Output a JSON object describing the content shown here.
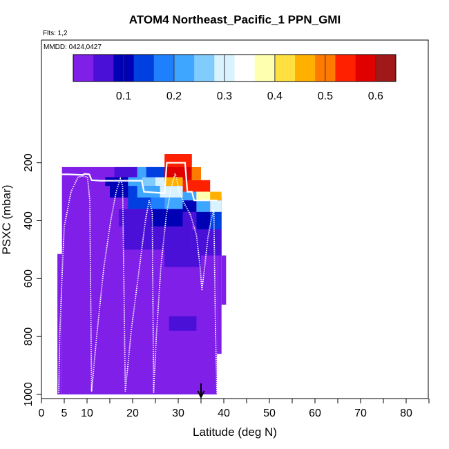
{
  "chart_data": {
    "type": "heatmap",
    "title": "ATOM4 Northeast_Pacific_1 PPN_GMI",
    "flights_note": "Flts: 1,2",
    "date_note": "MMDD: 0424,0427",
    "xlabel": "Latitude (deg N)",
    "ylabel": "PSXC (mbar)",
    "xlim": [
      0,
      85
    ],
    "ylim": [
      1030,
      50
    ],
    "y_reversed": true,
    "grid": false,
    "x_ticks": [
      0,
      5,
      10,
      20,
      30,
      40,
      50,
      60,
      70,
      80
    ],
    "x_minor_ticks": [
      15,
      25,
      35,
      45,
      55,
      65,
      75,
      85
    ],
    "y_ticks": [
      200,
      400,
      600,
      800,
      1000
    ],
    "colorbar": {
      "range": [
        0,
        0.64
      ],
      "ticks": [
        0.1,
        0.2,
        0.3,
        0.4,
        0.5,
        0.6
      ],
      "colors": [
        "#7f1fe8",
        "#4b10d8",
        "#0000b4",
        "#0040e0",
        "#1e7fff",
        "#3ea6ff",
        "#80ccff",
        "#d8f2ff",
        "#ffffff",
        "#ffffb0",
        "#ffe040",
        "#ffb000",
        "#ff7a00",
        "#ff2000",
        "#e00000",
        "#a01818"
      ]
    },
    "column_extents": [
      {
        "x": [
          3.5,
          4.5
        ],
        "p": [
          515,
          1000
        ]
      },
      {
        "x": [
          4.5,
          27.5
        ],
        "p": [
          215,
          1000
        ]
      },
      {
        "x": [
          27.5,
          32.5
        ],
        "p": [
          170,
          1000
        ]
      },
      {
        "x": [
          32.5,
          37.5
        ],
        "p": [
          330,
          1000
        ]
      },
      {
        "x": [
          37.5,
          38.5
        ],
        "p": [
          330,
          1000
        ]
      },
      {
        "x": [
          38.5,
          39.5
        ],
        "p": [
          320,
          860
        ]
      },
      {
        "x": [
          39.5,
          40.5
        ],
        "p": [
          520,
          690
        ]
      }
    ],
    "cells": [
      {
        "x": [
          16,
          21
        ],
        "p": [
          215,
          250
        ],
        "v": 0.06
      },
      {
        "x": [
          21,
          23
        ],
        "p": [
          215,
          250
        ],
        "v": 0.2
      },
      {
        "x": [
          23,
          27
        ],
        "p": [
          215,
          250
        ],
        "v": 0.15
      },
      {
        "x": [
          27,
          33
        ],
        "p": [
          170,
          215
        ],
        "v": 0.55
      },
      {
        "x": [
          27,
          33
        ],
        "p": [
          215,
          260
        ],
        "v": 0.58
      },
      {
        "x": [
          33,
          35
        ],
        "p": [
          215,
          260
        ],
        "v": 0.5
      },
      {
        "x": [
          14,
          19
        ],
        "p": [
          250,
          280
        ],
        "v": 0.08
      },
      {
        "x": [
          19,
          22
        ],
        "p": [
          250,
          280
        ],
        "v": 0.2
      },
      {
        "x": [
          22,
          25
        ],
        "p": [
          250,
          280
        ],
        "v": 0.24
      },
      {
        "x": [
          25,
          27
        ],
        "p": [
          250,
          280
        ],
        "v": 0.29
      },
      {
        "x": [
          27,
          31
        ],
        "p": [
          250,
          280
        ],
        "v": 0.45
      },
      {
        "x": [
          31,
          37
        ],
        "p": [
          260,
          300
        ],
        "v": 0.55
      },
      {
        "x": [
          15,
          19
        ],
        "p": [
          280,
          320
        ],
        "v": 0.08
      },
      {
        "x": [
          19,
          21
        ],
        "p": [
          280,
          320
        ],
        "v": 0.15
      },
      {
        "x": [
          21,
          26
        ],
        "p": [
          280,
          320
        ],
        "v": 0.22
      },
      {
        "x": [
          26,
          31
        ],
        "p": [
          280,
          320
        ],
        "v": 0.28
      },
      {
        "x": [
          31,
          34
        ],
        "p": [
          300,
          330
        ],
        "v": 0.2
      },
      {
        "x": [
          34,
          37
        ],
        "p": [
          300,
          330
        ],
        "v": 0.36
      },
      {
        "x": [
          37,
          39.5
        ],
        "p": [
          300,
          330
        ],
        "v": 0.45
      },
      {
        "x": [
          19,
          24
        ],
        "p": [
          320,
          360
        ],
        "v": 0.15
      },
      {
        "x": [
          24,
          27
        ],
        "p": [
          320,
          360
        ],
        "v": 0.18
      },
      {
        "x": [
          27,
          31
        ],
        "p": [
          320,
          360
        ],
        "v": 0.2
      },
      {
        "x": [
          31,
          34
        ],
        "p": [
          330,
          370
        ],
        "v": 0.09
      },
      {
        "x": [
          34,
          37
        ],
        "p": [
          330,
          370
        ],
        "v": 0.2
      },
      {
        "x": [
          37,
          39.5
        ],
        "p": [
          330,
          370
        ],
        "v": 0.3
      },
      {
        "x": [
          17,
          24
        ],
        "p": [
          360,
          420
        ],
        "v": 0.06
      },
      {
        "x": [
          24,
          31
        ],
        "p": [
          360,
          420
        ],
        "v": 0.08
      },
      {
        "x": [
          31,
          34
        ],
        "p": [
          370,
          420
        ],
        "v": 0.07
      },
      {
        "x": [
          34,
          37
        ],
        "p": [
          370,
          430
        ],
        "v": 0.1
      },
      {
        "x": [
          37,
          39.5
        ],
        "p": [
          370,
          430
        ],
        "v": 0.12
      },
      {
        "x": [
          18,
          25
        ],
        "p": [
          420,
          500
        ],
        "v": 0.04
      },
      {
        "x": [
          25,
          33
        ],
        "p": [
          420,
          500
        ],
        "v": 0.045
      },
      {
        "x": [
          33,
          37
        ],
        "p": [
          430,
          520
        ],
        "v": 0.05
      },
      {
        "x": [
          37,
          39.5
        ],
        "p": [
          430,
          520
        ],
        "v": 0.07
      },
      {
        "x": [
          21,
          27
        ],
        "p": [
          500,
          560
        ],
        "v": 0.035
      },
      {
        "x": [
          27,
          35
        ],
        "p": [
          500,
          560
        ],
        "v": 0.04
      },
      {
        "x": [
          26,
          34
        ],
        "p": [
          640,
          730
        ],
        "v": 0.035
      },
      {
        "x": [
          28,
          34
        ],
        "p": [
          730,
          780
        ],
        "v": 0.04
      }
    ],
    "flight_track_1": {
      "x": [
        3.8,
        4.0,
        4.6,
        5.0,
        6.5,
        8.0,
        9.2,
        10.1,
        10.6,
        11.0,
        12.1,
        13.7,
        15.2,
        16.4,
        17.3,
        17.8,
        18.4,
        19.7,
        21.5,
        22.8,
        23.6,
        24.3,
        24.6,
        25.2,
        26.2,
        27.4,
        28.3,
        28.9,
        29.3,
        29.6,
        30.2,
        31.3,
        32.7,
        34.0,
        34.8,
        35.2
      ],
      "y": [
        995,
        800,
        560,
        420,
        300,
        250,
        245,
        250,
        330,
        990,
        800,
        560,
        400,
        300,
        255,
        280,
        990,
        780,
        560,
        400,
        330,
        370,
        995,
        800,
        560,
        380,
        300,
        260,
        240,
        250,
        300,
        340,
        380,
        450,
        560,
        640
      ]
    },
    "flight_track_2": {
      "x": [
        35.2,
        35.8,
        36.5,
        37.2,
        37.8,
        38.2,
        38.5
      ],
      "y": [
        640,
        560,
        460,
        400,
        360,
        800,
        1000
      ]
    },
    "median_profile": {
      "x": [
        4.5,
        6,
        9,
        9.5,
        10.5,
        11,
        13,
        15,
        17,
        19,
        21,
        22,
        22.5,
        27,
        27.5,
        31.5,
        32,
        33,
        33.5,
        36,
        36.5,
        38.5
      ],
      "y": [
        240,
        240,
        242,
        238,
        240,
        260,
        262,
        262,
        262,
        262,
        262,
        262,
        300,
        305,
        200,
        200,
        300,
        300,
        330,
        330,
        330,
        330
      ]
    },
    "marker_x": 35
  }
}
